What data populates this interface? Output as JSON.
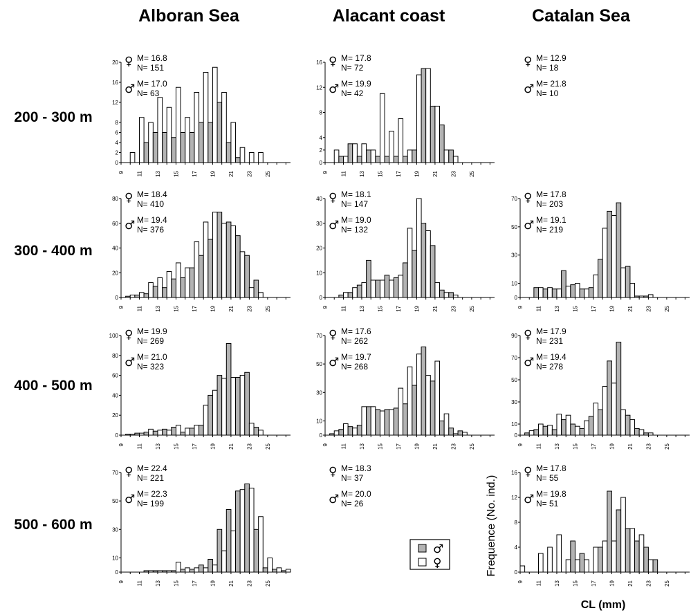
{
  "columns": [
    "Alboran Sea",
    "Alacant coast",
    "Catalan Sea"
  ],
  "rows": [
    "200 - 300 m",
    "300 - 400 m",
    "400 - 500 m",
    "500 - 600 m"
  ],
  "x_ticks": [
    "9",
    "11",
    "13",
    "15",
    "17",
    "19",
    "21",
    "23",
    "25"
  ],
  "ylabel": "Frequence (No. ind.)",
  "xlabel": "CL (mm)",
  "legend": {
    "male_symbol": "♂",
    "female_symbol": "♀"
  },
  "colors": {
    "male_fill": "#b3b3b3",
    "female_fill": "#ffffff",
    "stroke": "#000000"
  },
  "chart_data": [
    {
      "type": "bar",
      "row": "200 - 300 m",
      "column": "Alboran Sea",
      "female": {
        "M": "M= 16.8",
        "N": "N= 151"
      },
      "male": {
        "M": "M= 17.0",
        "N": "N= 63"
      },
      "ylim": [
        0,
        20
      ],
      "yticks": [
        0,
        2,
        4,
        6,
        8,
        12,
        16,
        20
      ],
      "x": [
        10,
        11,
        12,
        13,
        14,
        15,
        16,
        17,
        18,
        19,
        20,
        21,
        22,
        23,
        24
      ],
      "series": [
        {
          "name": "♂",
          "values": [
            0,
            0,
            4,
            6,
            6,
            5,
            6,
            6,
            8,
            8,
            12,
            4,
            1,
            0,
            0
          ]
        },
        {
          "name": "♀",
          "values": [
            2,
            9,
            8,
            13,
            11,
            15,
            9,
            14,
            18,
            19,
            14,
            8,
            3,
            2,
            2
          ]
        }
      ]
    },
    {
      "type": "bar",
      "row": "200 - 300 m",
      "column": "Alacant coast",
      "female": {
        "M": "M= 17.8",
        "N": "N= 72"
      },
      "male": {
        "M": "M= 19.9",
        "N": "N= 42"
      },
      "ylim": [
        0,
        16
      ],
      "yticks": [
        0,
        2,
        4,
        8,
        12,
        16
      ],
      "x": [
        10,
        11,
        12,
        13,
        14,
        15,
        16,
        17,
        18,
        19,
        20,
        21,
        22,
        23
      ],
      "series": [
        {
          "name": "♂",
          "values": [
            0,
            1,
            3,
            1,
            2,
            1,
            1,
            1,
            1,
            2,
            15,
            9,
            6,
            2
          ]
        },
        {
          "name": "♀",
          "values": [
            2,
            1,
            3,
            3,
            2,
            11,
            5,
            7,
            2,
            14,
            15,
            9,
            2,
            1
          ]
        }
      ]
    },
    {
      "type": "bar",
      "row": "200 - 300 m",
      "column": "Catalan Sea",
      "female": {
        "M": "M= 12.9",
        "N": "N= 18"
      },
      "male": {
        "M": "M= 21.8",
        "N": "N= 10"
      }
    },
    {
      "type": "bar",
      "row": "300 - 400 m",
      "column": "Alboran Sea",
      "female": {
        "M": "M= 18.4",
        "N": "N= 410"
      },
      "male": {
        "M": "M= 19.4",
        "N": "N= 376"
      },
      "ylim": [
        0,
        80
      ],
      "yticks": [
        0,
        20,
        40,
        60,
        80
      ],
      "x": [
        10,
        11,
        12,
        13,
        14,
        15,
        16,
        17,
        18,
        19,
        20,
        21,
        22,
        23,
        24
      ],
      "series": [
        {
          "name": "♂",
          "values": [
            1,
            2,
            3,
            9,
            8,
            15,
            16,
            24,
            34,
            47,
            69,
            61,
            50,
            34,
            14
          ]
        },
        {
          "name": "♀",
          "values": [
            2,
            4,
            12,
            16,
            21,
            28,
            24,
            45,
            61,
            69,
            60,
            58,
            37,
            8,
            4
          ]
        }
      ]
    },
    {
      "type": "bar",
      "row": "300 - 400 m",
      "column": "Alacant coast",
      "female": {
        "M": "M= 18.1",
        "N": "N= 147"
      },
      "male": {
        "M": "M= 19.0",
        "N": "N= 132"
      },
      "ylim": [
        0,
        40
      ],
      "yticks": [
        0,
        10,
        20,
        30,
        40
      ],
      "x": [
        11,
        12,
        13,
        14,
        15,
        16,
        17,
        18,
        19,
        20,
        21,
        22,
        23
      ],
      "series": [
        {
          "name": "♂",
          "values": [
            1,
            2,
            5,
            15,
            7,
            9,
            8,
            14,
            19,
            30,
            21,
            3,
            2
          ]
        },
        {
          "name": "♀",
          "values": [
            2,
            4,
            6,
            7,
            7,
            7,
            9,
            28,
            40,
            27,
            6,
            2,
            1
          ]
        }
      ]
    },
    {
      "type": "bar",
      "row": "300 - 400 m",
      "column": "Catalan Sea",
      "female": {
        "M": "M= 17.8",
        "N": "N= 203"
      },
      "male": {
        "M": "M= 19.1",
        "N": "N= 219"
      },
      "ylim": [
        0,
        70
      ],
      "yticks": [
        0,
        10,
        30,
        50,
        70
      ],
      "x": [
        11,
        12,
        13,
        14,
        15,
        16,
        17,
        18,
        19,
        20,
        21,
        22,
        23
      ],
      "series": [
        {
          "name": "♂",
          "values": [
            7,
            6,
            6,
            19,
            9,
            6,
            7,
            27,
            61,
            67,
            22,
            1,
            1
          ]
        },
        {
          "name": "♀",
          "values": [
            7,
            7,
            6,
            8,
            10,
            6,
            16,
            49,
            58,
            21,
            10,
            1,
            2
          ]
        }
      ]
    },
    {
      "type": "bar",
      "row": "400 - 500 m",
      "column": "Alboran Sea",
      "female": {
        "M": "M= 19.9",
        "N": "N= 269"
      },
      "male": {
        "M": "M= 21.0",
        "N": "N= 323"
      },
      "ylim": [
        0,
        100
      ],
      "yticks": [
        0,
        20,
        40,
        60,
        80,
        100
      ],
      "x": [
        10,
        11,
        12,
        13,
        14,
        15,
        16,
        17,
        18,
        19,
        20,
        21,
        22,
        23,
        24
      ],
      "series": [
        {
          "name": "♂",
          "values": [
            1,
            2,
            3,
            4,
            6,
            8,
            3,
            7,
            10,
            40,
            60,
            92,
            58,
            63,
            8
          ]
        },
        {
          "name": "♀",
          "values": [
            1,
            2,
            6,
            5,
            5,
            10,
            7,
            10,
            30,
            45,
            57,
            58,
            60,
            12,
            5
          ]
        }
      ]
    },
    {
      "type": "bar",
      "row": "400 - 500 m",
      "column": "Alacant coast",
      "female": {
        "M": "M= 17.6",
        "N": "N= 262"
      },
      "male": {
        "M": "M= 19.7",
        "N": "N= 268"
      },
      "ylim": [
        0,
        70
      ],
      "yticks": [
        0,
        10,
        30,
        50,
        70
      ],
      "x": [
        10,
        11,
        12,
        13,
        14,
        15,
        16,
        17,
        18,
        19,
        20,
        21,
        22,
        23,
        24
      ],
      "series": [
        {
          "name": "♂",
          "values": [
            1,
            4,
            6,
            7,
            20,
            18,
            18,
            19,
            22,
            35,
            62,
            38,
            10,
            5,
            3
          ]
        },
        {
          "name": "♀",
          "values": [
            3,
            8,
            5,
            20,
            20,
            17,
            18,
            33,
            48,
            57,
            42,
            52,
            15,
            1,
            2
          ]
        }
      ]
    },
    {
      "type": "bar",
      "row": "400 - 500 m",
      "column": "Catalan Sea",
      "female": {
        "M": "M= 17.9",
        "N": "N= 231"
      },
      "male": {
        "M": "M= 19.4",
        "N": "N= 278"
      },
      "ylim": [
        0,
        90
      ],
      "yticks": [
        0,
        10,
        30,
        50,
        70,
        90
      ],
      "x": [
        10,
        11,
        12,
        13,
        14,
        15,
        16,
        17,
        18,
        19,
        20,
        21,
        22,
        23
      ],
      "series": [
        {
          "name": "♂",
          "values": [
            2,
            5,
            8,
            5,
            14,
            10,
            6,
            17,
            23,
            67,
            84,
            18,
            6,
            2
          ]
        },
        {
          "name": "♀",
          "values": [
            4,
            10,
            9,
            19,
            18,
            8,
            13,
            29,
            44,
            47,
            23,
            14,
            5,
            2
          ]
        }
      ]
    },
    {
      "type": "bar",
      "row": "500 - 600 m",
      "column": "Alboran Sea",
      "female": {
        "M": "M= 22.4",
        "N": "N= 221"
      },
      "male": {
        "M": "M= 22.3",
        "N": "N= 199"
      },
      "ylim": [
        0,
        70
      ],
      "yticks": [
        0,
        10,
        30,
        50,
        70
      ],
      "x": [
        12,
        13,
        14,
        15,
        16,
        17,
        18,
        19,
        20,
        21,
        22,
        23,
        24,
        25,
        26,
        27
      ],
      "series": [
        {
          "name": "♂",
          "values": [
            1,
            1,
            1,
            1,
            2,
            2,
            5,
            9,
            30,
            44,
            57,
            62,
            30,
            3,
            2,
            1
          ]
        },
        {
          "name": "♀",
          "values": [
            1,
            1,
            1,
            7,
            3,
            3,
            3,
            5,
            15,
            29,
            58,
            59,
            39,
            10,
            3,
            2
          ]
        }
      ]
    },
    {
      "type": "bar",
      "row": "500 - 600 m",
      "column": "Alacant coast",
      "female": {
        "M": "M= 18.3",
        "N": "N= 37"
      },
      "male": {
        "M": "M= 20.0",
        "N": "N= 26"
      }
    },
    {
      "type": "bar",
      "row": "500 - 600 m",
      "column": "Catalan Sea",
      "female": {
        "M": "M= 17.8",
        "N": "N= 55"
      },
      "male": {
        "M": "M= 19.8",
        "N": "N= 51"
      },
      "ylim": [
        0,
        16
      ],
      "yticks": [
        0,
        4,
        8,
        12,
        16
      ],
      "x": [
        9,
        10,
        11,
        12,
        13,
        14,
        15,
        16,
        17,
        18,
        19,
        20,
        21,
        22,
        23,
        24
      ],
      "series": [
        {
          "name": "♂",
          "values": [
            0,
            0,
            0,
            0,
            0,
            0,
            5,
            3,
            0,
            4,
            13,
            10,
            7,
            5,
            4,
            2
          ]
        },
        {
          "name": "♀",
          "values": [
            1,
            0,
            3,
            4,
            6,
            2,
            2,
            2,
            4,
            5,
            5,
            12,
            7,
            6,
            2,
            0
          ]
        }
      ]
    }
  ]
}
